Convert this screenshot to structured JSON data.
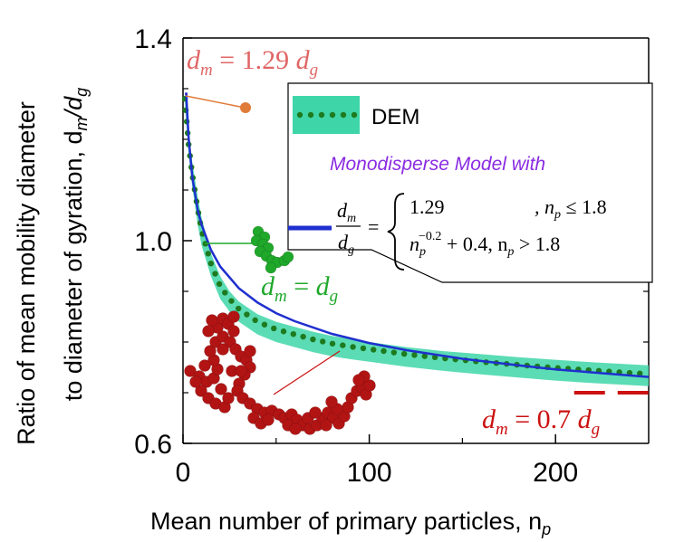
{
  "colors": {
    "band": "#3ed6a8",
    "dem_dots": "#1e7a1e",
    "model_line": "#1f2fcf",
    "orange": "#e07b39",
    "green": "#1fa82a",
    "red": "#cc1111",
    "purple": "#8a2be2",
    "pink": "#e06666"
  },
  "chart_data": {
    "type": "line",
    "xlabel": "Mean number of primary particles, n",
    "xlabel_sub": "p",
    "ylabel_line1": "Ratio of mean mobility diameter",
    "ylabel_line2": "to diameter of gyration, d",
    "ylabel_sub1": "m",
    "ylabel_slash": "/d",
    "ylabel_sub2": "g",
    "xlim": [
      0,
      250
    ],
    "ylim": [
      0.6,
      1.4
    ],
    "x_ticks": [
      0,
      100,
      200
    ],
    "x_tick_labels": [
      "0",
      "100",
      "200"
    ],
    "y_ticks": [
      0.6,
      1.0,
      1.4
    ],
    "y_tick_labels": [
      "0.6",
      "1.0",
      "1.4"
    ],
    "grid": false,
    "series": [
      {
        "name": "DEM",
        "kind": "dotted-with-band",
        "x": [
          1,
          3,
          5,
          8,
          10,
          15,
          20,
          25,
          30,
          40,
          50,
          60,
          70,
          80,
          90,
          100,
          120,
          140,
          160,
          180,
          200,
          220,
          240,
          250
        ],
        "y": [
          1.28,
          1.19,
          1.13,
          1.06,
          1.02,
          0.955,
          0.91,
          0.885,
          0.865,
          0.84,
          0.825,
          0.815,
          0.805,
          0.797,
          0.791,
          0.786,
          0.776,
          0.768,
          0.761,
          0.755,
          0.749,
          0.744,
          0.739,
          0.737
        ],
        "band_upper": [
          1.29,
          1.21,
          1.155,
          1.085,
          1.045,
          0.975,
          0.93,
          0.9,
          0.88,
          0.855,
          0.84,
          0.83,
          0.82,
          0.812,
          0.806,
          0.8,
          0.79,
          0.782,
          0.776,
          0.77,
          0.765,
          0.76,
          0.756,
          0.754
        ],
        "band_lower": [
          1.27,
          1.17,
          1.105,
          1.03,
          0.99,
          0.93,
          0.885,
          0.86,
          0.84,
          0.815,
          0.8,
          0.79,
          0.78,
          0.772,
          0.766,
          0.761,
          0.751,
          0.743,
          0.736,
          0.73,
          0.724,
          0.719,
          0.715,
          0.713
        ]
      },
      {
        "name": "Monodisperse Model",
        "kind": "line",
        "x": [
          1,
          1.8,
          2,
          3,
          5,
          8,
          10,
          15,
          20,
          30,
          40,
          50,
          60,
          80,
          100,
          120,
          150,
          180,
          200,
          220,
          250
        ],
        "y": [
          1.29,
          1.29,
          1.271,
          1.203,
          1.125,
          1.059,
          1.031,
          0.982,
          0.949,
          0.906,
          0.878,
          0.857,
          0.841,
          0.816,
          0.798,
          0.784,
          0.767,
          0.754,
          0.746,
          0.74,
          0.731
        ]
      }
    ],
    "annotations": {
      "top": "d_m = 1.29 d_g",
      "mid": "d_m = d_g",
      "bottom": "d_m = 0.7 d_g"
    },
    "reference_lines": [
      {
        "name": "0.7 reference",
        "y": 0.7,
        "x": [
          210,
          250
        ]
      }
    ],
    "legend": {
      "placement": "top-right",
      "dem_label": "DEM",
      "model_heading": "Monodisperse Model with",
      "eq_lhs_num": "d",
      "eq_lhs_num_sub": "m",
      "eq_lhs_den": "d",
      "eq_lhs_den_sub": "g",
      "eq_case1_value": "1.29",
      "eq_case1_cond": ", n",
      "eq_case1_cond_sub": "p",
      "eq_case1_cond_rhs": " ≤ 1.8",
      "eq_case2_base": "n",
      "eq_case2_base_sub": "p",
      "eq_case2_exp": "−0.2",
      "eq_case2_rest": " + 0.4, n",
      "eq_case2_cond_sub": "p",
      "eq_case2_cond_rhs": " > 1.8"
    }
  },
  "annotation_text": {
    "top_d": "d",
    "top_sub_m": "m",
    "top_rest": " = 1.29 ",
    "top_d2": "d",
    "top_sub_g": "g",
    "mid_d": "d",
    "mid_sub_m": "m",
    "mid_rest": " = ",
    "mid_d2": "d",
    "mid_sub_g": "g",
    "bot_d": "d",
    "bot_sub_m": "m",
    "bot_rest": " = 0.7 ",
    "bot_d2": "d",
    "bot_sub_g": "g"
  }
}
